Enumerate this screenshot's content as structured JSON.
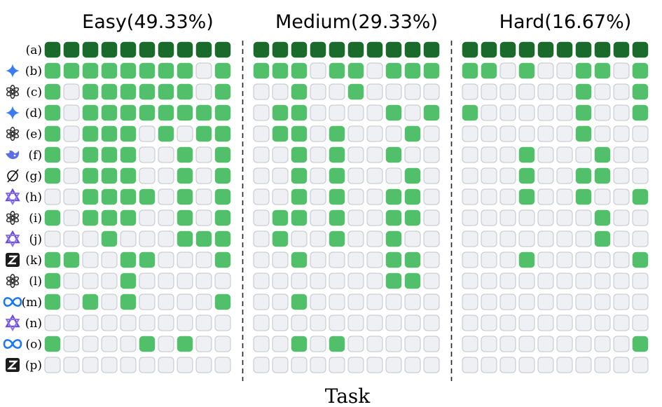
{
  "chart_data": {
    "type": "heatmap",
    "title": "",
    "xlabel": "Task",
    "ylabel": "",
    "panels": [
      {
        "label": "Easy(49.33%)"
      },
      {
        "label": "Medium(29.33%)"
      },
      {
        "label": "Hard(16.67%)"
      }
    ],
    "legend": "none",
    "state_colors": {
      "full": "#1a6a2c",
      "pass": "#52c06a",
      "fail": "#eef0f3",
      "fail_border": "#c2c5cc"
    },
    "rows": [
      {
        "label": "(a)",
        "icon": "none",
        "cells": [
          [
            2,
            2,
            2,
            2,
            2,
            2,
            2,
            2,
            2,
            2
          ],
          [
            2,
            2,
            2,
            2,
            2,
            2,
            2,
            2,
            2,
            2
          ],
          [
            2,
            2,
            2,
            2,
            2,
            2,
            2,
            2,
            2,
            2
          ]
        ]
      },
      {
        "label": "(b)",
        "icon": "gemini-star-icon",
        "cells": [
          [
            1,
            1,
            1,
            1,
            1,
            1,
            1,
            1,
            0,
            1
          ],
          [
            1,
            1,
            1,
            0,
            1,
            1,
            0,
            1,
            1,
            1
          ],
          [
            1,
            1,
            0,
            1,
            0,
            0,
            1,
            1,
            0,
            1
          ]
        ]
      },
      {
        "label": "(c)",
        "icon": "openai-icon",
        "cells": [
          [
            1,
            0,
            1,
            1,
            1,
            1,
            1,
            1,
            0,
            1
          ],
          [
            0,
            0,
            1,
            0,
            0,
            1,
            0,
            0,
            0,
            0
          ],
          [
            0,
            0,
            0,
            0,
            0,
            0,
            1,
            0,
            0,
            1
          ]
        ]
      },
      {
        "label": "(d)",
        "icon": "gemini-star-icon",
        "cells": [
          [
            1,
            0,
            1,
            1,
            1,
            1,
            1,
            1,
            1,
            1
          ],
          [
            0,
            1,
            1,
            0,
            0,
            0,
            0,
            1,
            0,
            1
          ],
          [
            1,
            0,
            0,
            0,
            0,
            0,
            1,
            0,
            0,
            1
          ]
        ]
      },
      {
        "label": "(e)",
        "icon": "openai-icon",
        "cells": [
          [
            1,
            0,
            1,
            1,
            1,
            0,
            1,
            0,
            1,
            1
          ],
          [
            0,
            1,
            1,
            0,
            1,
            0,
            0,
            0,
            1,
            0
          ],
          [
            0,
            0,
            0,
            0,
            0,
            0,
            1,
            0,
            0,
            0
          ]
        ]
      },
      {
        "label": "(f)",
        "icon": "deepseek-whale-icon",
        "cells": [
          [
            1,
            0,
            1,
            1,
            1,
            0,
            0,
            1,
            0,
            1
          ],
          [
            0,
            0,
            1,
            0,
            1,
            0,
            0,
            1,
            0,
            0
          ],
          [
            0,
            0,
            0,
            1,
            0,
            0,
            0,
            1,
            0,
            0
          ]
        ]
      },
      {
        "label": "(g)",
        "icon": "grok-icon",
        "cells": [
          [
            1,
            0,
            1,
            1,
            1,
            0,
            0,
            1,
            0,
            1
          ],
          [
            0,
            0,
            1,
            0,
            1,
            0,
            0,
            0,
            1,
            0
          ],
          [
            0,
            0,
            0,
            1,
            0,
            0,
            1,
            1,
            0,
            0
          ]
        ]
      },
      {
        "label": "(h)",
        "icon": "qwen-icon",
        "cells": [
          [
            0,
            0,
            1,
            1,
            1,
            1,
            0,
            1,
            0,
            1
          ],
          [
            0,
            0,
            1,
            0,
            1,
            0,
            0,
            1,
            1,
            0
          ],
          [
            0,
            0,
            0,
            1,
            0,
            0,
            1,
            0,
            0,
            1
          ]
        ]
      },
      {
        "label": "(i)",
        "icon": "openai-icon",
        "cells": [
          [
            1,
            0,
            1,
            1,
            1,
            0,
            0,
            1,
            0,
            1
          ],
          [
            0,
            1,
            1,
            0,
            1,
            0,
            0,
            1,
            1,
            0
          ],
          [
            0,
            0,
            0,
            0,
            0,
            0,
            0,
            1,
            0,
            0
          ]
        ]
      },
      {
        "label": "(j)",
        "icon": "qwen-icon",
        "cells": [
          [
            0,
            0,
            0,
            1,
            0,
            0,
            0,
            1,
            1,
            1
          ],
          [
            0,
            1,
            0,
            0,
            1,
            0,
            0,
            1,
            0,
            0
          ],
          [
            0,
            0,
            0,
            0,
            0,
            0,
            0,
            1,
            0,
            0
          ]
        ]
      },
      {
        "label": "(k)",
        "icon": "zhipu-z-icon",
        "cells": [
          [
            1,
            1,
            0,
            0,
            1,
            1,
            0,
            0,
            0,
            1
          ],
          [
            0,
            0,
            1,
            0,
            0,
            0,
            0,
            1,
            1,
            0
          ],
          [
            0,
            0,
            0,
            1,
            0,
            0,
            0,
            0,
            0,
            1
          ]
        ]
      },
      {
        "label": "(l)",
        "icon": "openai-icon",
        "cells": [
          [
            1,
            0,
            0,
            0,
            1,
            0,
            0,
            0,
            0,
            0
          ],
          [
            0,
            0,
            0,
            0,
            0,
            0,
            0,
            1,
            1,
            0
          ],
          [
            0,
            0,
            0,
            0,
            0,
            0,
            0,
            0,
            0,
            0
          ]
        ]
      },
      {
        "label": "(m)",
        "icon": "meta-infinity-icon",
        "cells": [
          [
            1,
            0,
            1,
            0,
            1,
            0,
            0,
            0,
            0,
            1
          ],
          [
            0,
            0,
            1,
            0,
            0,
            0,
            0,
            0,
            0,
            0
          ],
          [
            0,
            0,
            0,
            0,
            0,
            0,
            0,
            0,
            0,
            0
          ]
        ]
      },
      {
        "label": "(n)",
        "icon": "qwen-icon",
        "cells": [
          [
            0,
            0,
            0,
            0,
            0,
            0,
            0,
            0,
            0,
            0
          ],
          [
            0,
            0,
            0,
            0,
            0,
            0,
            0,
            0,
            0,
            0
          ],
          [
            0,
            0,
            0,
            0,
            0,
            0,
            0,
            0,
            0,
            0
          ]
        ]
      },
      {
        "label": "(o)",
        "icon": "meta-infinity-icon",
        "cells": [
          [
            1,
            0,
            0,
            0,
            0,
            1,
            0,
            1,
            0,
            0
          ],
          [
            0,
            0,
            1,
            0,
            1,
            0,
            0,
            0,
            0,
            0
          ],
          [
            0,
            0,
            0,
            0,
            0,
            0,
            0,
            0,
            0,
            1
          ]
        ]
      },
      {
        "label": "(p)",
        "icon": "zhipu-z-icon",
        "cells": [
          [
            0,
            0,
            0,
            0,
            0,
            0,
            0,
            0,
            0,
            0
          ],
          [
            0,
            0,
            0,
            0,
            0,
            0,
            0,
            0,
            0,
            0
          ],
          [
            0,
            0,
            0,
            0,
            0,
            0,
            0,
            0,
            0,
            0
          ]
        ]
      }
    ]
  }
}
